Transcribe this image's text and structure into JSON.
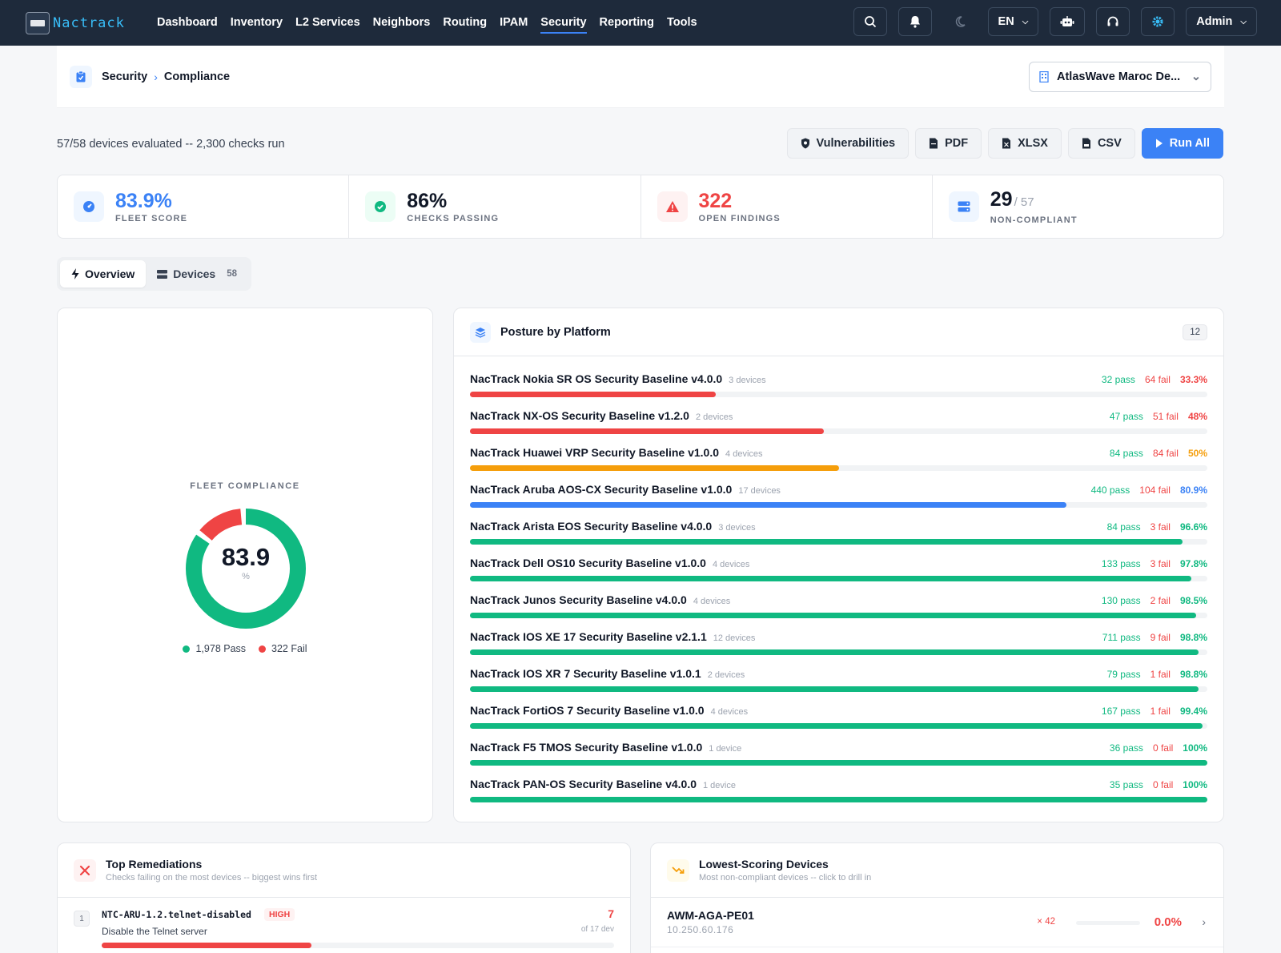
{
  "app": {
    "name": "Nactrack"
  },
  "nav": [
    "Dashboard",
    "Inventory",
    "L2 Services",
    "Neighbors",
    "Routing",
    "IPAM",
    "Security",
    "Reporting",
    "Tools"
  ],
  "nav_active": "Security",
  "topbar": {
    "language": "EN",
    "user": "Admin"
  },
  "breadcrumb": {
    "section": "Security",
    "page": "Compliance"
  },
  "tenant": "AtlasWave Maroc De...",
  "summary": "57/58 devices evaluated -- 2,300 checks run",
  "actions": {
    "vulnerabilities": "Vulnerabilities",
    "pdf": "PDF",
    "xlsx": "XLSX",
    "csv": "CSV",
    "run_all": "Run All"
  },
  "stats": {
    "fleet_score": {
      "value": "83.9%",
      "label": "FLEET SCORE"
    },
    "checks_passing": {
      "value": "86%",
      "label": "CHECKS PASSING"
    },
    "open_findings": {
      "value": "322",
      "label": "OPEN FINDINGS"
    },
    "non_compliant": {
      "value": "29",
      "total": "/ 57",
      "label": "NON-COMPLIANT"
    }
  },
  "tabs": {
    "overview": "Overview",
    "devices": "Devices",
    "devices_count": "58"
  },
  "fleet": {
    "title": "FLEET COMPLIANCE",
    "value": "83.9",
    "unit": "%",
    "pass_label": "1,978 Pass",
    "fail_label": "322 Fail",
    "pass": 1978,
    "fail": 322
  },
  "posture": {
    "title": "Posture by Platform",
    "count": "12",
    "rows": [
      {
        "name": "NacTrack Nokia SR OS Security Baseline v4.0.0",
        "devices": "3 devices",
        "pass": "32 pass",
        "fail": "64 fail",
        "pct": "33.3%",
        "ratio": 0.333,
        "color": "#ef4444"
      },
      {
        "name": "NacTrack NX-OS Security Baseline v1.2.0",
        "devices": "2 devices",
        "pass": "47 pass",
        "fail": "51 fail",
        "pct": "48%",
        "ratio": 0.48,
        "color": "#ef4444"
      },
      {
        "name": "NacTrack Huawei VRP Security Baseline v1.0.0",
        "devices": "4 devices",
        "pass": "84 pass",
        "fail": "84 fail",
        "pct": "50%",
        "ratio": 0.5,
        "color": "#f59e0b"
      },
      {
        "name": "NacTrack Aruba AOS-CX Security Baseline v1.0.0",
        "devices": "17 devices",
        "pass": "440 pass",
        "fail": "104 fail",
        "pct": "80.9%",
        "ratio": 0.809,
        "color": "#3b82f6"
      },
      {
        "name": "NacTrack Arista EOS Security Baseline v4.0.0",
        "devices": "3 devices",
        "pass": "84 pass",
        "fail": "3 fail",
        "pct": "96.6%",
        "ratio": 0.966,
        "color": "#10b981"
      },
      {
        "name": "NacTrack Dell OS10 Security Baseline v1.0.0",
        "devices": "4 devices",
        "pass": "133 pass",
        "fail": "3 fail",
        "pct": "97.8%",
        "ratio": 0.978,
        "color": "#10b981"
      },
      {
        "name": "NacTrack Junos Security Baseline v4.0.0",
        "devices": "4 devices",
        "pass": "130 pass",
        "fail": "2 fail",
        "pct": "98.5%",
        "ratio": 0.985,
        "color": "#10b981"
      },
      {
        "name": "NacTrack IOS XE 17 Security Baseline v2.1.1",
        "devices": "12 devices",
        "pass": "711 pass",
        "fail": "9 fail",
        "pct": "98.8%",
        "ratio": 0.988,
        "color": "#10b981"
      },
      {
        "name": "NacTrack IOS XR 7 Security Baseline v1.0.1",
        "devices": "2 devices",
        "pass": "79 pass",
        "fail": "1 fail",
        "pct": "98.8%",
        "ratio": 0.988,
        "color": "#10b981"
      },
      {
        "name": "NacTrack FortiOS 7 Security Baseline v1.0.0",
        "devices": "4 devices",
        "pass": "167 pass",
        "fail": "1 fail",
        "pct": "99.4%",
        "ratio": 0.994,
        "color": "#10b981"
      },
      {
        "name": "NacTrack F5 TMOS Security Baseline v1.0.0",
        "devices": "1 device",
        "pass": "36 pass",
        "fail": "0 fail",
        "pct": "100%",
        "ratio": 1.0,
        "color": "#10b981"
      },
      {
        "name": "NacTrack PAN-OS Security Baseline v4.0.0",
        "devices": "1 device",
        "pass": "35 pass",
        "fail": "0 fail",
        "pct": "100%",
        "ratio": 1.0,
        "color": "#10b981"
      }
    ]
  },
  "remediations": {
    "title": "Top Remediations",
    "subtitle": "Checks failing on the most devices -- biggest wins first",
    "items": [
      {
        "rank": "1",
        "code": "NTC-ARU-1.2.telnet-disabled",
        "severity": "HIGH",
        "desc": "Disable the Telnet server",
        "count": "7",
        "of": "of 17 dev",
        "ratio": 0.41
      }
    ]
  },
  "lowest": {
    "title": "Lowest-Scoring Devices",
    "subtitle": "Most non-compliant devices -- click to drill in",
    "items": [
      {
        "name": "AWM-AGA-PE01",
        "ip": "10.250.60.176",
        "fails": "× 42",
        "pct": "0.0%"
      }
    ]
  }
}
